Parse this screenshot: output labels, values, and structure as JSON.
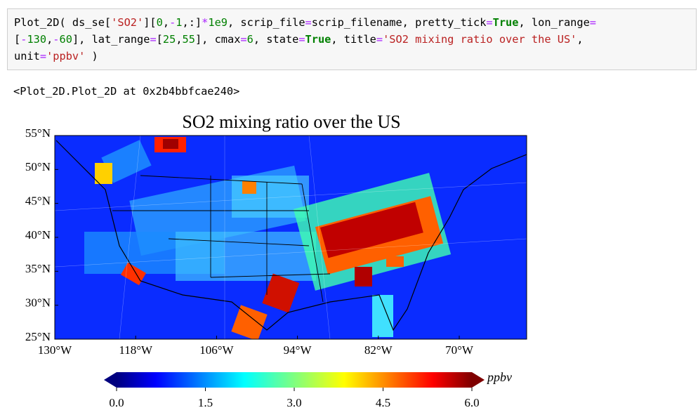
{
  "code": {
    "lines": [
      [
        {
          "text": "Plot_2D( ds_se[",
          "color": "#000000"
        },
        {
          "text": "'SO2'",
          "color": "#ba2121"
        },
        {
          "text": "][",
          "color": "#000000"
        },
        {
          "text": "0",
          "color": "#008000"
        },
        {
          "text": ",",
          "color": "#000000"
        },
        {
          "text": "-",
          "color": "#aa22ff"
        },
        {
          "text": "1",
          "color": "#008000"
        },
        {
          "text": ",:]",
          "color": "#000000"
        },
        {
          "text": "*",
          "color": "#aa22ff"
        },
        {
          "text": "1e9",
          "color": "#008000"
        },
        {
          "text": ", scrip_file",
          "color": "#000000"
        },
        {
          "text": "=",
          "color": "#aa22ff"
        },
        {
          "text": "scrip_filename, pretty_tick",
          "color": "#000000"
        },
        {
          "text": "=",
          "color": "#aa22ff"
        },
        {
          "text": "True",
          "color": "#008000",
          "bold": true
        },
        {
          "text": ", lon_range",
          "color": "#000000"
        },
        {
          "text": "=",
          "color": "#aa22ff"
        }
      ],
      [
        {
          "text": "[",
          "color": "#000000"
        },
        {
          "text": "-",
          "color": "#aa22ff"
        },
        {
          "text": "130",
          "color": "#008000"
        },
        {
          "text": ",",
          "color": "#000000"
        },
        {
          "text": "-",
          "color": "#aa22ff"
        },
        {
          "text": "60",
          "color": "#008000"
        },
        {
          "text": "], lat_range",
          "color": "#000000"
        },
        {
          "text": "=",
          "color": "#aa22ff"
        },
        {
          "text": "[",
          "color": "#000000"
        },
        {
          "text": "25",
          "color": "#008000"
        },
        {
          "text": ",",
          "color": "#000000"
        },
        {
          "text": "55",
          "color": "#008000"
        },
        {
          "text": "], cmax",
          "color": "#000000"
        },
        {
          "text": "=",
          "color": "#aa22ff"
        },
        {
          "text": "6",
          "color": "#008000"
        },
        {
          "text": ", state",
          "color": "#000000"
        },
        {
          "text": "=",
          "color": "#aa22ff"
        },
        {
          "text": "True",
          "color": "#008000",
          "bold": true
        },
        {
          "text": ", title",
          "color": "#000000"
        },
        {
          "text": "=",
          "color": "#aa22ff"
        },
        {
          "text": "'SO2 mixing ratio over the US'",
          "color": "#ba2121"
        },
        {
          "text": ",",
          "color": "#000000"
        }
      ],
      [
        {
          "text": "unit",
          "color": "#000000"
        },
        {
          "text": "=",
          "color": "#aa22ff"
        },
        {
          "text": "'ppbv'",
          "color": "#ba2121"
        },
        {
          "text": " )",
          "color": "#000000"
        }
      ]
    ]
  },
  "output": "<Plot_2D.Plot_2D at 0x2b4bbfcae240>",
  "plot": {
    "title": "SO2 mixing ratio over the US",
    "xlim": [
      -130,
      -60
    ],
    "ylim": [
      25,
      55
    ],
    "xticks": [
      {
        "value": -130,
        "label": "130°W"
      },
      {
        "value": -118,
        "label": "118°W"
      },
      {
        "value": -106,
        "label": "106°W"
      },
      {
        "value": -94,
        "label": "94°W"
      },
      {
        "value": -82,
        "label": "82°W"
      },
      {
        "value": -70,
        "label": "70°W"
      }
    ],
    "yticks": [
      {
        "value": 25,
        "label": "25°N"
      },
      {
        "value": 30,
        "label": "30°N"
      },
      {
        "value": 35,
        "label": "35°N"
      },
      {
        "value": 40,
        "label": "40°N"
      },
      {
        "value": 45,
        "label": "45°N"
      },
      {
        "value": 50,
        "label": "50°N"
      },
      {
        "value": 55,
        "label": "55°N"
      }
    ],
    "colorbar": {
      "lim": [
        0,
        6
      ],
      "ticks": [
        {
          "value": 0,
          "label": "0.0"
        },
        1.5,
        {
          "value": 3,
          "label": "3.0"
        },
        4.5,
        {
          "value": 6,
          "label": "6.0"
        }
      ],
      "unit": "ppbv"
    }
  }
}
